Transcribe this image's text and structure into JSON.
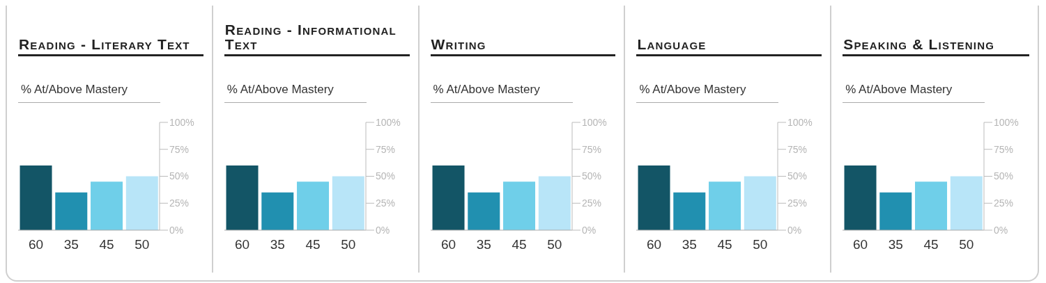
{
  "chart_data": [
    {
      "type": "bar",
      "title": "Reading - Literary Text",
      "ylabel": "% At/Above Mastery",
      "categories": [
        null,
        null,
        null,
        null
      ],
      "values": [
        60,
        35,
        45,
        50
      ],
      "colors": [
        "#135566",
        "#2190b0",
        "#6fcfe9",
        "#b8e5f8"
      ],
      "ylim": [
        0,
        100
      ],
      "yticks": [
        {
          "value": 0,
          "label": "0%"
        },
        {
          "value": 25,
          "label": "25%"
        },
        {
          "value": 50,
          "label": "50%"
        },
        {
          "value": 75,
          "label": "75%"
        },
        {
          "value": 100,
          "label": "100%"
        }
      ],
      "data_labels": true
    },
    {
      "type": "bar",
      "title": "Reading - Informational Text",
      "ylabel": "% At/Above Mastery",
      "categories": [
        null,
        null,
        null,
        null
      ],
      "values": [
        60,
        35,
        45,
        50
      ],
      "colors": [
        "#135566",
        "#2190b0",
        "#6fcfe9",
        "#b8e5f8"
      ],
      "ylim": [
        0,
        100
      ],
      "yticks": [
        {
          "value": 0,
          "label": "0%"
        },
        {
          "value": 25,
          "label": "25%"
        },
        {
          "value": 50,
          "label": "50%"
        },
        {
          "value": 75,
          "label": "75%"
        },
        {
          "value": 100,
          "label": "100%"
        }
      ],
      "data_labels": true
    },
    {
      "type": "bar",
      "title": "Writing",
      "ylabel": "% At/Above Mastery",
      "categories": [
        null,
        null,
        null,
        null
      ],
      "values": [
        60,
        35,
        45,
        50
      ],
      "colors": [
        "#135566",
        "#2190b0",
        "#6fcfe9",
        "#b8e5f8"
      ],
      "ylim": [
        0,
        100
      ],
      "yticks": [
        {
          "value": 0,
          "label": "0%"
        },
        {
          "value": 25,
          "label": "25%"
        },
        {
          "value": 50,
          "label": "50%"
        },
        {
          "value": 75,
          "label": "75%"
        },
        {
          "value": 100,
          "label": "100%"
        }
      ],
      "data_labels": true
    },
    {
      "type": "bar",
      "title": "Language",
      "ylabel": "% At/Above Mastery",
      "categories": [
        null,
        null,
        null,
        null
      ],
      "values": [
        60,
        35,
        45,
        50
      ],
      "colors": [
        "#135566",
        "#2190b0",
        "#6fcfe9",
        "#b8e5f8"
      ],
      "ylim": [
        0,
        100
      ],
      "yticks": [
        {
          "value": 0,
          "label": "0%"
        },
        {
          "value": 25,
          "label": "25%"
        },
        {
          "value": 50,
          "label": "50%"
        },
        {
          "value": 75,
          "label": "75%"
        },
        {
          "value": 100,
          "label": "100%"
        }
      ],
      "data_labels": true
    },
    {
      "type": "bar",
      "title": "Speaking & Listening",
      "ylabel": "% At/Above Mastery",
      "categories": [
        null,
        null,
        null,
        null
      ],
      "values": [
        60,
        35,
        45,
        50
      ],
      "colors": [
        "#135566",
        "#2190b0",
        "#6fcfe9",
        "#b8e5f8"
      ],
      "ylim": [
        0,
        100
      ],
      "yticks": [
        {
          "value": 0,
          "label": "0%"
        },
        {
          "value": 25,
          "label": "25%"
        },
        {
          "value": 50,
          "label": "50%"
        },
        {
          "value": 75,
          "label": "75%"
        },
        {
          "value": 100,
          "label": "100%"
        }
      ],
      "data_labels": true
    }
  ]
}
